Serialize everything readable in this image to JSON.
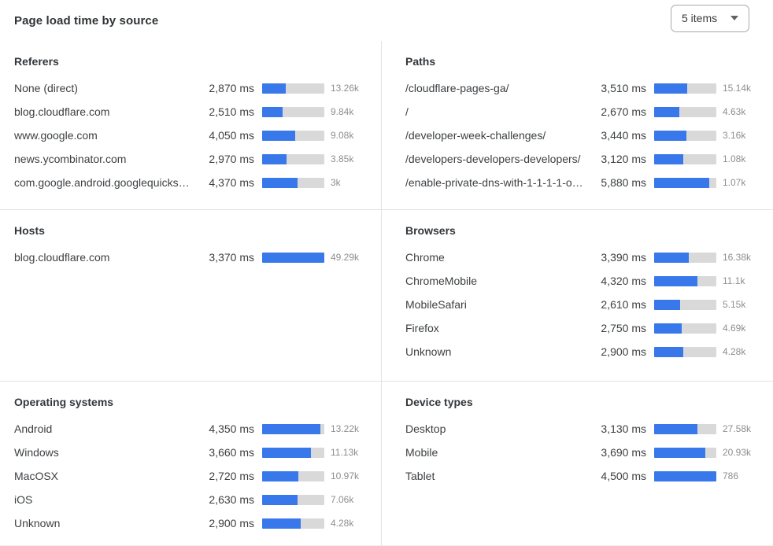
{
  "header": {
    "title": "Page load time by source",
    "items_select": {
      "value": "5 items"
    }
  },
  "colors": {
    "bar_fill": "#3878ea",
    "bar_track": "#d9d9d9"
  },
  "chart_data": {
    "type": "bar",
    "unit": "ms",
    "note": "horizontal progress bars; fill = ms / bar_scale_ms"
  },
  "panels": [
    {
      "title": "Referers",
      "bar_scale_ms": 7600,
      "rows": [
        {
          "label": "None (direct)",
          "ms": 2870,
          "ms_text": "2,870 ms",
          "count": "13.26k"
        },
        {
          "label": "blog.cloudflare.com",
          "ms": 2510,
          "ms_text": "2,510 ms",
          "count": "9.84k"
        },
        {
          "label": "www.google.com",
          "ms": 4050,
          "ms_text": "4,050 ms",
          "count": "9.08k"
        },
        {
          "label": "news.ycombinator.com",
          "ms": 2970,
          "ms_text": "2,970 ms",
          "count": "3.85k"
        },
        {
          "label": "com.google.android.googlequicksearc...",
          "ms": 4370,
          "ms_text": "4,370 ms",
          "count": "3k"
        }
      ]
    },
    {
      "title": "Paths",
      "bar_scale_ms": 6600,
      "rows": [
        {
          "label": "/cloudflare-pages-ga/",
          "ms": 3510,
          "ms_text": "3,510 ms",
          "count": "15.14k"
        },
        {
          "label": "/",
          "ms": 2670,
          "ms_text": "2,670 ms",
          "count": "4.63k"
        },
        {
          "label": "/developer-week-challenges/",
          "ms": 3440,
          "ms_text": "3,440 ms",
          "count": "3.16k"
        },
        {
          "label": "/developers-developers-developers/",
          "ms": 3120,
          "ms_text": "3,120 ms",
          "count": "1.08k"
        },
        {
          "label": "/enable-private-dns-with-1-1-1-1-on-...",
          "ms": 5880,
          "ms_text": "5,880 ms",
          "count": "1.07k"
        }
      ]
    },
    {
      "title": "Hosts",
      "bar_scale_ms": 3370,
      "rows": [
        {
          "label": "blog.cloudflare.com",
          "ms": 3370,
          "ms_text": "3,370 ms",
          "count": "49.29k"
        }
      ]
    },
    {
      "title": "Browsers",
      "bar_scale_ms": 6150,
      "rows": [
        {
          "label": "Chrome",
          "ms": 3390,
          "ms_text": "3,390 ms",
          "count": "16.38k"
        },
        {
          "label": "ChromeMobile",
          "ms": 4320,
          "ms_text": "4,320 ms",
          "count": "11.1k"
        },
        {
          "label": "MobileSafari",
          "ms": 2610,
          "ms_text": "2,610 ms",
          "count": "5.15k"
        },
        {
          "label": "Firefox",
          "ms": 2750,
          "ms_text": "2,750 ms",
          "count": "4.69k"
        },
        {
          "label": "Unknown",
          "ms": 2900,
          "ms_text": "2,900 ms",
          "count": "4.28k"
        }
      ]
    },
    {
      "title": "Operating systems",
      "bar_scale_ms": 4650,
      "rows": [
        {
          "label": "Android",
          "ms": 4350,
          "ms_text": "4,350 ms",
          "count": "13.22k"
        },
        {
          "label": "Windows",
          "ms": 3660,
          "ms_text": "3,660 ms",
          "count": "11.13k"
        },
        {
          "label": "MacOSX",
          "ms": 2720,
          "ms_text": "2,720 ms",
          "count": "10.97k"
        },
        {
          "label": "iOS",
          "ms": 2630,
          "ms_text": "2,630 ms",
          "count": "7.06k"
        },
        {
          "label": "Unknown",
          "ms": 2900,
          "ms_text": "2,900 ms",
          "count": "4.28k"
        }
      ]
    },
    {
      "title": "Device types",
      "bar_scale_ms": 4500,
      "rows": [
        {
          "label": "Desktop",
          "ms": 3130,
          "ms_text": "3,130 ms",
          "count": "27.58k"
        },
        {
          "label": "Mobile",
          "ms": 3690,
          "ms_text": "3,690 ms",
          "count": "20.93k"
        },
        {
          "label": "Tablet",
          "ms": 4500,
          "ms_text": "4,500 ms",
          "count": "786"
        }
      ]
    }
  ]
}
